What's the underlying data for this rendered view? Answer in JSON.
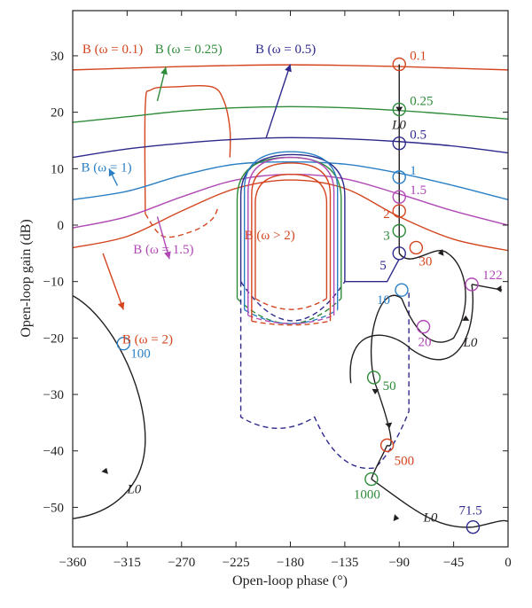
{
  "chart_data": {
    "type": "line",
    "title": "",
    "xlabel": "Open-loop phase (°)",
    "ylabel": "Open-loop gain (dB)",
    "xlim": [
      -360,
      0
    ],
    "ylim": [
      -57,
      38
    ],
    "xticks": [
      -360,
      -315,
      -270,
      -225,
      -180,
      -135,
      -90,
      -45,
      0
    ],
    "yticks": [
      -50,
      -40,
      -30,
      -20,
      -10,
      0,
      10,
      20,
      30
    ],
    "grid": false,
    "colors": {
      "w0_1": "#d4451f",
      "w0_25": "#2e8b3a",
      "w0_5": "#2e2a8c",
      "w1": "#2a7fc4",
      "w1_5": "#b048b5",
      "w2": "#d4451f",
      "wgt2": "#d4451f",
      "L0": "#231f20"
    },
    "bound_labels": [
      {
        "text": "B (ω = 0.1)",
        "color": "#d4451f"
      },
      {
        "text": "B (ω = 0.25)",
        "color": "#2e8b3a"
      },
      {
        "text": "B (ω = 0.5)",
        "color": "#2e2a8c"
      },
      {
        "text": "B (ω = 1)",
        "color": "#2a7fc4"
      },
      {
        "text": "B (ω = 1.5)",
        "color": "#b048b5"
      },
      {
        "text": "B (ω = 2)",
        "color": "#d4451f"
      },
      {
        "text": "B (ω > 2)",
        "color": "#d4451f"
      }
    ],
    "series": [
      {
        "key": "w0_1",
        "color": "#d4451f",
        "style": "solid",
        "x": [
          -360,
          -315,
          -270,
          -225,
          -180,
          -135,
          -90,
          -45,
          0
        ],
        "y": [
          27.5,
          27.8,
          28.1,
          28.3,
          28.4,
          28.3,
          28.1,
          27.8,
          27.5
        ]
      },
      {
        "key": "w0_1_cup",
        "color": "#d4451f",
        "style": "solid",
        "x": [
          -300,
          -300,
          -295,
          -275,
          -245,
          -235,
          -230,
          -230
        ],
        "y": [
          2,
          21,
          24,
          24.5,
          24.5,
          22,
          17,
          12
        ]
      },
      {
        "key": "w0_1_cup_dashed",
        "color": "#d4451f",
        "style": "dashed",
        "x": [
          -300,
          -285,
          -260,
          -245,
          -240
        ],
        "y": [
          2,
          -2,
          -1,
          1,
          3
        ]
      },
      {
        "key": "w0_25",
        "color": "#2e8b3a",
        "style": "solid",
        "x": [
          -360,
          -315,
          -270,
          -225,
          -180,
          -135,
          -90,
          -45,
          0
        ],
        "y": [
          18.2,
          19.2,
          20.2,
          20.8,
          21,
          20.8,
          20.3,
          19.6,
          18.8
        ]
      },
      {
        "key": "w0_5",
        "color": "#2e2a8c",
        "style": "solid",
        "x": [
          -360,
          -315,
          -270,
          -225,
          -180,
          -135,
          -90,
          -45,
          0
        ],
        "y": [
          12,
          13.5,
          14.5,
          15.2,
          15.5,
          15.3,
          14.8,
          14,
          12.8
        ]
      },
      {
        "key": "w1",
        "color": "#2a7fc4",
        "style": "solid",
        "x": [
          -360,
          -315,
          -270,
          -225,
          -180,
          -135,
          -90,
          -45,
          0
        ],
        "y": [
          4.5,
          6,
          8.8,
          10.8,
          11.2,
          10.8,
          9.2,
          7,
          4.5
        ]
      },
      {
        "key": "w1_5",
        "color": "#b048b5",
        "style": "solid",
        "x": [
          -360,
          -315,
          -270,
          -225,
          -180,
          -135,
          -90,
          -45,
          0
        ],
        "y": [
          -0.5,
          1.5,
          5,
          8,
          9,
          8.2,
          5.5,
          2.5,
          0
        ]
      },
      {
        "key": "w2",
        "color": "#d4451f",
        "style": "solid",
        "x": [
          -360,
          -315,
          -270,
          -225,
          -180,
          -135,
          -90,
          -45,
          0
        ],
        "y": [
          -4,
          -2,
          2.5,
          6.5,
          8,
          6.5,
          1.5,
          -2.5,
          -4.5
        ]
      }
    ],
    "frequency_markers": [
      {
        "label": "0.1",
        "phase": -90,
        "gain": 28.5,
        "color": "#d4451f"
      },
      {
        "label": "0.25",
        "phase": -90,
        "gain": 20.5,
        "color": "#2e8b3a"
      },
      {
        "label": "0.5",
        "phase": -90,
        "gain": 14.5,
        "color": "#2e2a8c"
      },
      {
        "label": "1",
        "phase": -90,
        "gain": 8.5,
        "color": "#2a7fc4"
      },
      {
        "label": "1.5",
        "phase": -90,
        "gain": 5,
        "color": "#b048b5"
      },
      {
        "label": "2",
        "phase": -90,
        "gain": 2.5,
        "color": "#d4451f"
      },
      {
        "label": "3",
        "phase": -90,
        "gain": -1,
        "color": "#2e8b3a"
      },
      {
        "label": "5",
        "phase": -90,
        "gain": -5,
        "color": "#2e2a8c"
      },
      {
        "label": "10",
        "phase": -88,
        "gain": -11.5,
        "color": "#2a7fc4"
      },
      {
        "label": "30",
        "phase": -76,
        "gain": -4,
        "color": "#d4451f"
      },
      {
        "label": "20",
        "phase": -70,
        "gain": -18,
        "color": "#b048b5"
      },
      {
        "label": "122",
        "phase": -30,
        "gain": -10.5,
        "color": "#b048b5"
      },
      {
        "label": "50",
        "phase": -111,
        "gain": -27,
        "color": "#2e8b3a"
      },
      {
        "label": "500",
        "phase": -100,
        "gain": -39,
        "color": "#d4451f"
      },
      {
        "label": "1000",
        "phase": -113,
        "gain": -45,
        "color": "#2e8b3a"
      },
      {
        "label": "100",
        "phase": -318,
        "gain": -21,
        "color": "#2a7fc4"
      },
      {
        "label": "71.5",
        "phase": -29,
        "gain": -53.5,
        "color": "#2e2a8c"
      }
    ],
    "L0_labels": [
      "L0",
      "L0",
      "L0",
      "L0"
    ]
  }
}
